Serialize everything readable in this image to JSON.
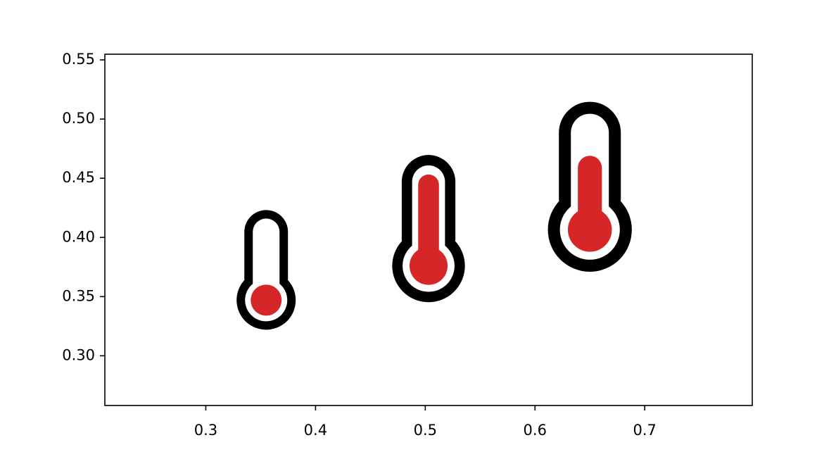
{
  "chart_data": {
    "type": "scatter",
    "series": [
      {
        "color": "#d62728",
        "x": [
          0.355,
          0.503,
          0.65
        ],
        "y": [
          0.347,
          0.376,
          0.4065
        ],
        "sizes": [
          1,
          1.23,
          1.42
        ],
        "levels": [
          0,
          0.95,
          0.6
        ]
      }
    ],
    "xlim": [
      0.208,
      0.798
    ],
    "ylim": [
      0.258,
      0.5548
    ],
    "xticks": [
      0.3,
      0.4,
      0.5,
      0.6,
      0.7
    ],
    "yticks": [
      {
        "value": 0.3,
        "label": "0.30"
      },
      0.35,
      {
        "value": 0.4,
        "label": "0.40"
      },
      0.45,
      {
        "value": 0.5,
        "label": "0.50"
      },
      0.55
    ],
    "grid": false
  }
}
